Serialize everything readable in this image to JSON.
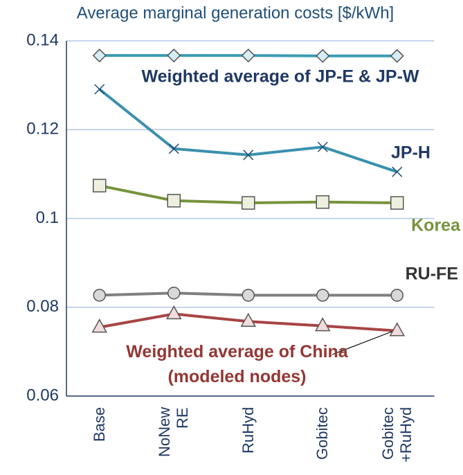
{
  "chart_data": {
    "type": "line",
    "title": "Average marginal generation costs [$/kWh]",
    "categories": [
      "Base",
      "NoNew RE",
      "RuHyd",
      "Gobitec",
      "Gobitec +RuHyd"
    ],
    "series": [
      {
        "name": "Weighted average of JP-E & JP-W",
        "color": "#3a9bb5",
        "marker": "diamond",
        "values": [
          0.1367,
          0.1367,
          0.1367,
          0.1366,
          0.1366
        ]
      },
      {
        "name": "JP-H",
        "color": "#3a90ad",
        "marker": "x",
        "values": [
          0.1291,
          0.1157,
          0.1143,
          0.1161,
          0.1105
        ]
      },
      {
        "name": "Korea",
        "color": "#77933c",
        "marker": "square",
        "values": [
          0.1074,
          0.104,
          0.1035,
          0.1037,
          0.1035
        ]
      },
      {
        "name": "RU-FE",
        "color": "#808080",
        "marker": "circle",
        "values": [
          0.0827,
          0.0832,
          0.0827,
          0.0827,
          0.0827
        ]
      },
      {
        "name": "Weighted average of China (modeled nodes)",
        "color": "#a84444",
        "marker": "triangle",
        "values": [
          0.0755,
          0.0785,
          0.0768,
          0.0758,
          0.0747
        ]
      }
    ],
    "ylim": [
      0.06,
      0.14
    ],
    "yticks": [
      0.06,
      0.08,
      0.1,
      0.12,
      0.14
    ],
    "grid": true
  }
}
